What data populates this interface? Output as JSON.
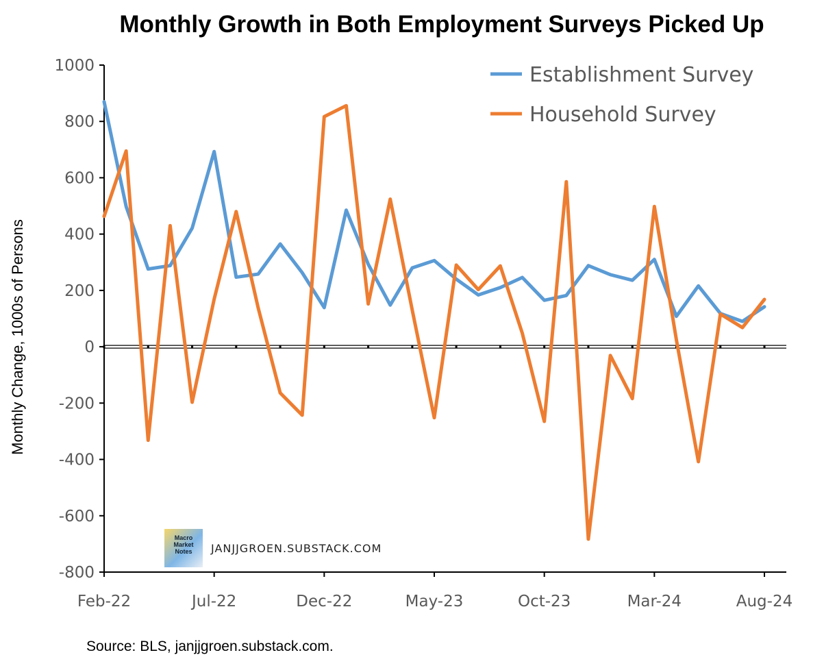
{
  "chart_data": {
    "type": "line",
    "title": "Monthly Growth in Both Employment Surveys Picked Up",
    "xlabel": "",
    "ylabel": "Monthly Change, 1000s of Persons",
    "ylim": [
      -800,
      1000
    ],
    "yticks": [
      1000,
      800,
      600,
      400,
      200,
      0,
      -200,
      -400,
      -600,
      -800
    ],
    "x": [
      "Feb-22",
      "Mar-22",
      "Apr-22",
      "May-22",
      "Jun-22",
      "Jul-22",
      "Aug-22",
      "Sep-22",
      "Oct-22",
      "Nov-22",
      "Dec-22",
      "Jan-23",
      "Feb-23",
      "Mar-23",
      "Apr-23",
      "May-23",
      "Jun-23",
      "Jul-23",
      "Aug-23",
      "Sep-23",
      "Oct-23",
      "Nov-23",
      "Dec-23",
      "Jan-24",
      "Feb-24",
      "Mar-24",
      "Apr-24",
      "May-24",
      "Jun-24",
      "Jul-24",
      "Aug-24"
    ],
    "xtick_labels": [
      "Feb-22",
      "Jul-22",
      "Dec-22",
      "May-23",
      "Oct-23",
      "Mar-24",
      "Aug-24"
    ],
    "grid": false,
    "legend_position": "top-right",
    "series": [
      {
        "name": "Establishment Survey",
        "color": "#5b9bd5",
        "values": [
          870,
          498,
          276,
          288,
          421,
          693,
          247,
          258,
          365,
          263,
          139,
          485,
          293,
          148,
          280,
          306,
          240,
          184,
          210,
          246,
          165,
          182,
          288,
          256,
          236,
          310,
          108,
          216,
          118,
          90,
          142
        ]
      },
      {
        "name": "Household Survey",
        "color": "#ed7d31",
        "values": [
          463,
          695,
          -332,
          430,
          -197,
          169,
          480,
          138,
          -164,
          -243,
          817,
          856,
          152,
          524,
          130,
          -252,
          290,
          203,
          287,
          48,
          -265,
          586,
          -683,
          -31,
          -184,
          498,
          25,
          -408,
          116,
          68,
          168
        ]
      }
    ]
  },
  "watermark": {
    "logo_text": "Macro Market Notes",
    "text": "JANJJGROEN.SUBSTACK.COM"
  },
  "source": "Source: BLS, janjjgroen.substack.com."
}
